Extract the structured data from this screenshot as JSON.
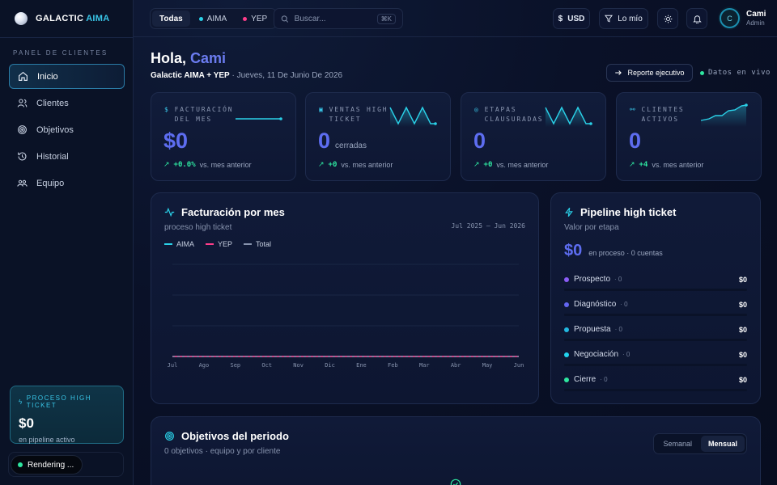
{
  "brand": {
    "name": "GALACTIC",
    "accent": "AIMA"
  },
  "sidebar": {
    "section_label": "PANEL DE CLIENTES",
    "items": [
      {
        "label": "Inicio",
        "icon": "home-icon",
        "active": true
      },
      {
        "label": "Clientes",
        "icon": "users-icon"
      },
      {
        "label": "Objetivos",
        "icon": "target-icon"
      },
      {
        "label": "Historial",
        "icon": "history-icon"
      },
      {
        "label": "Equipo",
        "icon": "team-icon"
      }
    ],
    "pipeline": {
      "label": "PROCESO HIGH TICKET",
      "value": "$0",
      "sub": "en pipeline activo"
    },
    "status": "Rendering ..."
  },
  "topbar": {
    "filters": [
      {
        "label": "Todas",
        "active": true
      },
      {
        "label": "AIMA",
        "color": "#2ad1e8"
      },
      {
        "label": "YEP",
        "color": "#ff3d8a"
      }
    ],
    "search": {
      "placeholder": "Buscar...",
      "shortcut": "⌘K"
    },
    "currency": "USD",
    "filter_mine": "Lo mío",
    "user": {
      "initial": "C",
      "name": "Cami",
      "role": "Admin"
    }
  },
  "header": {
    "greeting": "Hola,",
    "name": "Cami",
    "subtitle_strong": "Galactic AIMA + YEP",
    "subtitle_rest": " · Jueves, 11 De Junio De 2026",
    "report_button": "Reporte ejecutivo",
    "live_label": "Datos en vivo"
  },
  "kpis": [
    {
      "title": "FACTURACIÓN DEL MES",
      "icon": "$",
      "value": "$0",
      "unit": "",
      "delta": "+0.0%",
      "delta_label": "vs. mes anterior"
    },
    {
      "title": "VENTAS HIGH TICKET",
      "icon": "▣",
      "value": "0",
      "unit": "cerradas",
      "delta": "+0",
      "delta_label": "vs. mes anterior"
    },
    {
      "title": "ETAPAS CLAUSURADAS",
      "icon": "◎",
      "value": "0",
      "unit": "",
      "delta": "+0",
      "delta_label": "vs. mes anterior"
    },
    {
      "title": "CLIENTES ACTIVOS",
      "icon": "⚯",
      "value": "0",
      "unit": "",
      "delta": "+4",
      "delta_label": "vs. mes anterior"
    }
  ],
  "revenue": {
    "title": "Facturación por mes",
    "subtitle": "proceso high ticket",
    "range": "Jul 2025 — Jun 2026",
    "legend": [
      {
        "label": "AIMA",
        "color": "#2ad1e8"
      },
      {
        "label": "YEP",
        "color": "#ff3d8a"
      },
      {
        "label": "Total",
        "color": "#8793ad"
      }
    ]
  },
  "chart_data": {
    "type": "line",
    "categories": [
      "Jul",
      "Ago",
      "Sep",
      "Oct",
      "Nov",
      "Dic",
      "Ene",
      "Feb",
      "Mar",
      "Abr",
      "May",
      "Jun"
    ],
    "series": [
      {
        "name": "AIMA",
        "values": [
          0,
          0,
          0,
          0,
          0,
          0,
          0,
          0,
          0,
          0,
          0,
          0
        ]
      },
      {
        "name": "YEP",
        "values": [
          0,
          0,
          0,
          0,
          0,
          0,
          0,
          0,
          0,
          0,
          0,
          0
        ]
      },
      {
        "name": "Total",
        "values": [
          0,
          0,
          0,
          0,
          0,
          0,
          0,
          0,
          0,
          0,
          0,
          0
        ]
      }
    ],
    "grid": true,
    "legend": "top-left"
  },
  "pipeline": {
    "title": "Pipeline high ticket",
    "subtitle": "Valor por etapa",
    "total": "$0",
    "summary": "en proceso · 0 cuentas",
    "stages": [
      {
        "name": "Prospecto",
        "count": "· 0",
        "amount": "$0",
        "color": "#8b5cf6"
      },
      {
        "name": "Diagnóstico",
        "count": "· 0",
        "amount": "$0",
        "color": "#6366f1"
      },
      {
        "name": "Propuesta",
        "count": "· 0",
        "amount": "$0",
        "color": "#22b8e0"
      },
      {
        "name": "Negociación",
        "count": "· 0",
        "amount": "$0",
        "color": "#22d3ee"
      },
      {
        "name": "Cierre",
        "count": "· 0",
        "amount": "$0",
        "color": "#2ee6a0"
      }
    ]
  },
  "objectives": {
    "title": "Objetivos del periodo",
    "subtitle": "0 objetivos · equipo y por cliente",
    "tabs": [
      {
        "label": "Semanal"
      },
      {
        "label": "Mensual",
        "active": true
      }
    ]
  }
}
